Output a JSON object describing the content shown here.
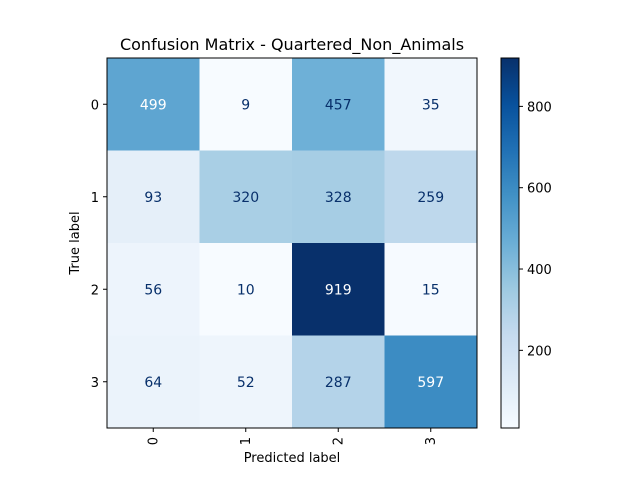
{
  "chart_data": {
    "type": "heatmap",
    "title": "Confusion Matrix - Quartered_Non_Animals",
    "xlabel": "Predicted label",
    "ylabel": "True label",
    "x_categories": [
      "0",
      "1",
      "2",
      "3"
    ],
    "y_categories": [
      "0",
      "1",
      "2",
      "3"
    ],
    "matrix": [
      [
        499,
        9,
        457,
        35
      ],
      [
        93,
        320,
        328,
        259
      ],
      [
        56,
        10,
        919,
        15
      ],
      [
        64,
        52,
        287,
        597
      ]
    ],
    "colormap": "Blues",
    "value_range": [
      9,
      919
    ],
    "colorbar_ticks": [
      "200",
      "400",
      "600",
      "800"
    ]
  }
}
